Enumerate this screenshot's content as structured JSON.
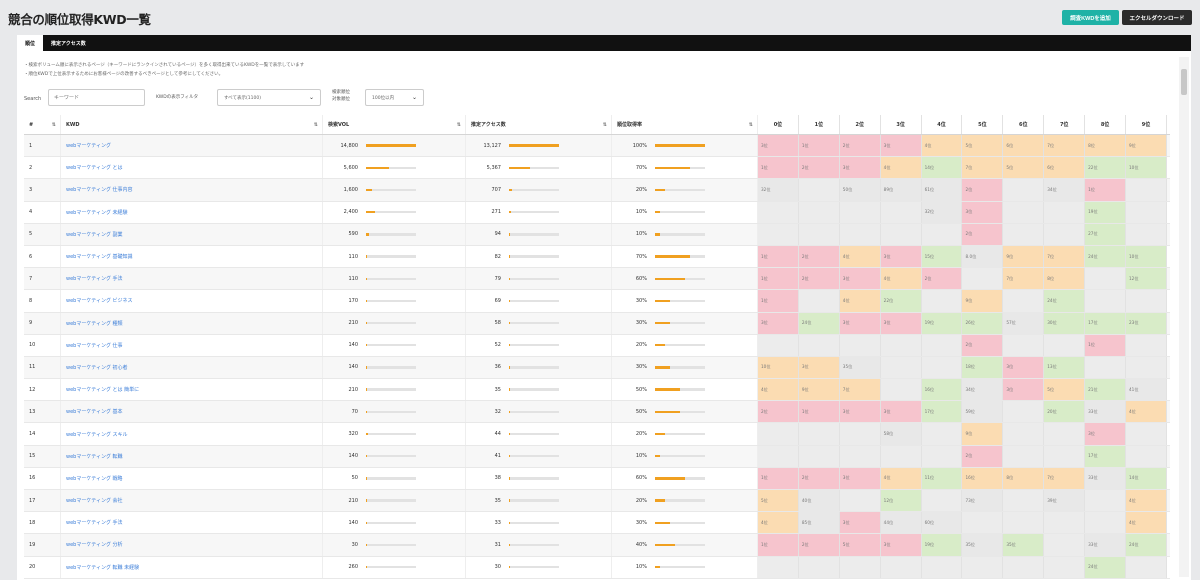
{
  "page": {
    "title": "競合の順位取得KWD一覧"
  },
  "toolbar": {
    "left_button": "調査KWDを追加",
    "right_button": "エクセルダウンロード"
  },
  "tabs": [
    {
      "label": "順位"
    },
    {
      "label": "推定アクセス数"
    }
  ],
  "notes": {
    "line1": "・検索ボリューム順に表示されるページ（キーワードにランクインされているページ）を多く取得出来ているKWDを一覧で表示しています",
    "line2": "・順位KWDで上位表示するためにお客様ページの改善するべきページとして参考にしてください。"
  },
  "filters": {
    "search_label": "Search",
    "search_placeholder": "キーワード",
    "kwd_filter_label": "KWDの表示フィルタ",
    "kwd_filter_value": "すべて表示(1100)",
    "limit_label_1": "検索順位",
    "limit_label_2": "対象順位",
    "limit_value": "100位以内"
  },
  "table": {
    "headers": {
      "num": "#",
      "kw": "KWD",
      "vol": "検索VOL",
      "access": "推定アクセス数",
      "rate": "順位取得率",
      "ranks": [
        "0位",
        "1位",
        "2位",
        "3位",
        "4位",
        "5位",
        "6位",
        "7位",
        "8位",
        "9位"
      ]
    },
    "rows": [
      {
        "n": "1",
        "kw": "webマーケティング",
        "vol": "14,800",
        "vol_pct": 100,
        "acc": "13,127",
        "acc_pct": 100,
        "rate": "100%",
        "rate_pct": 100,
        "ranks": [
          [
            "3位",
            "pink"
          ],
          [
            "1位",
            "pink"
          ],
          [
            "2位",
            "pink"
          ],
          [
            "3位",
            "pink"
          ],
          [
            "4位",
            "orange"
          ],
          [
            "5位",
            "orange"
          ],
          [
            "6位",
            "orange"
          ],
          [
            "7位",
            "orange"
          ],
          [
            "8位",
            "orange"
          ],
          [
            "9位",
            "orange"
          ]
        ]
      },
      {
        "n": "2",
        "kw": "webマーケティング とは",
        "vol": "5,600",
        "vol_pct": 45,
        "acc": "5,367",
        "acc_pct": 42,
        "rate": "70%",
        "rate_pct": 70,
        "ranks": [
          [
            "1位",
            "pink"
          ],
          [
            "2位",
            "pink"
          ],
          [
            "3位",
            "pink"
          ],
          [
            "4位",
            "orange"
          ],
          [
            "14位",
            "green"
          ],
          [
            "7位",
            "orange"
          ],
          [
            "5位",
            "orange"
          ],
          [
            "6位",
            "orange"
          ],
          [
            "22位",
            "green"
          ],
          [
            "10位",
            "green"
          ]
        ]
      },
      {
        "n": "3",
        "kw": "webマーケティング 仕事内容",
        "vol": "1,600",
        "vol_pct": 12,
        "acc": "707",
        "acc_pct": 6,
        "rate": "20%",
        "rate_pct": 20,
        "ranks": [
          [
            "32位",
            "gray"
          ],
          [
            "",
            ""
          ],
          [
            "50位",
            "gray"
          ],
          [
            "89位",
            "gray"
          ],
          [
            "61位",
            "gray"
          ],
          [
            "2位",
            "pink"
          ],
          [
            "",
            ""
          ],
          [
            "34位",
            "gray"
          ],
          [
            "1位",
            "pink"
          ],
          [
            "",
            ""
          ]
        ]
      },
      {
        "n": "4",
        "kw": "webマーケティング 未経験",
        "vol": "2,400",
        "vol_pct": 18,
        "acc": "271",
        "acc_pct": 3,
        "rate": "10%",
        "rate_pct": 10,
        "ranks": [
          [
            "",
            ""
          ],
          [
            "",
            ""
          ],
          [
            "",
            ""
          ],
          [
            "",
            ""
          ],
          [
            "32位",
            "gray"
          ],
          [
            "3位",
            "pink"
          ],
          [
            "",
            ""
          ],
          [
            "",
            ""
          ],
          [
            "19位",
            "green"
          ],
          [
            "",
            ""
          ]
        ]
      },
      {
        "n": "5",
        "kw": "webマーケティング 副業",
        "vol": "590",
        "vol_pct": 5,
        "acc": "94",
        "acc_pct": 1,
        "rate": "10%",
        "rate_pct": 10,
        "ranks": [
          [
            "",
            ""
          ],
          [
            "",
            ""
          ],
          [
            "",
            ""
          ],
          [
            "",
            ""
          ],
          [
            "",
            ""
          ],
          [
            "2位",
            "pink"
          ],
          [
            "",
            ""
          ],
          [
            "",
            ""
          ],
          [
            "27位",
            "green"
          ],
          [
            "",
            ""
          ]
        ]
      },
      {
        "n": "6",
        "kw": "webマーケティング 基礎知識",
        "vol": "110",
        "vol_pct": 1,
        "acc": "82",
        "acc_pct": 1,
        "rate": "70%",
        "rate_pct": 70,
        "ranks": [
          [
            "1位",
            "pink"
          ],
          [
            "2位",
            "pink"
          ],
          [
            "4位",
            "orange"
          ],
          [
            "3位",
            "pink"
          ],
          [
            "15位",
            "green"
          ],
          [
            "8.0位",
            "gray"
          ],
          [
            "9位",
            "orange"
          ],
          [
            "7位",
            "orange"
          ],
          [
            "24位",
            "green"
          ],
          [
            "10位",
            "green"
          ]
        ]
      },
      {
        "n": "7",
        "kw": "webマーケティング 手法",
        "vol": "110",
        "vol_pct": 1,
        "acc": "79",
        "acc_pct": 1,
        "rate": "60%",
        "rate_pct": 60,
        "ranks": [
          [
            "1位",
            "pink"
          ],
          [
            "2位",
            "pink"
          ],
          [
            "3位",
            "pink"
          ],
          [
            "4位",
            "orange"
          ],
          [
            "2位",
            "pink"
          ],
          [
            "",
            ""
          ],
          [
            "7位",
            "orange"
          ],
          [
            "8位",
            "orange"
          ],
          [
            "",
            ""
          ],
          [
            "12位",
            "green"
          ]
        ]
      },
      {
        "n": "8",
        "kw": "webマーケティング ビジネス",
        "vol": "170",
        "vol_pct": 1,
        "acc": "69",
        "acc_pct": 1,
        "rate": "30%",
        "rate_pct": 30,
        "ranks": [
          [
            "1位",
            "pink"
          ],
          [
            "",
            ""
          ],
          [
            "4位",
            "orange"
          ],
          [
            "22位",
            "green"
          ],
          [
            "",
            ""
          ],
          [
            "9位",
            "orange"
          ],
          [
            "",
            ""
          ],
          [
            "24位",
            "green"
          ],
          [
            "",
            ""
          ],
          [
            "",
            ""
          ]
        ]
      },
      {
        "n": "9",
        "kw": "webマーケティング 種類",
        "vol": "210",
        "vol_pct": 2,
        "acc": "58",
        "acc_pct": 1,
        "rate": "30%",
        "rate_pct": 30,
        "ranks": [
          [
            "3位",
            "pink"
          ],
          [
            "24位",
            "green"
          ],
          [
            "3位",
            "pink"
          ],
          [
            "3位",
            "pink"
          ],
          [
            "19位",
            "green"
          ],
          [
            "26位",
            "green"
          ],
          [
            "57位",
            "gray"
          ],
          [
            "30位",
            "green"
          ],
          [
            "17位",
            "green"
          ],
          [
            "23位",
            "green"
          ]
        ]
      },
      {
        "n": "10",
        "kw": "webマーケティング 仕事",
        "vol": "140",
        "vol_pct": 1,
        "acc": "52",
        "acc_pct": 1,
        "rate": "20%",
        "rate_pct": 20,
        "ranks": [
          [
            "",
            ""
          ],
          [
            "",
            ""
          ],
          [
            "",
            ""
          ],
          [
            "",
            ""
          ],
          [
            "",
            ""
          ],
          [
            "2位",
            "pink"
          ],
          [
            "",
            ""
          ],
          [
            "",
            ""
          ],
          [
            "1位",
            "pink"
          ],
          [
            "",
            ""
          ]
        ]
      },
      {
        "n": "11",
        "kw": "webマーケティング 初心者",
        "vol": "140",
        "vol_pct": 1,
        "acc": "36",
        "acc_pct": 1,
        "rate": "30%",
        "rate_pct": 30,
        "ranks": [
          [
            "10位",
            "orange"
          ],
          [
            "3位",
            "orange"
          ],
          [
            "35位",
            "gray"
          ],
          [
            "",
            ""
          ],
          [
            "",
            ""
          ],
          [
            "18位",
            "green"
          ],
          [
            "3位",
            "pink"
          ],
          [
            "13位",
            "green"
          ],
          [
            "",
            ""
          ],
          [
            "",
            ""
          ]
        ]
      },
      {
        "n": "12",
        "kw": "webマーケティング とは 簡単に",
        "vol": "210",
        "vol_pct": 2,
        "acc": "35",
        "acc_pct": 1,
        "rate": "50%",
        "rate_pct": 50,
        "ranks": [
          [
            "4位",
            "orange"
          ],
          [
            "9位",
            "orange"
          ],
          [
            "7位",
            "orange"
          ],
          [
            "",
            ""
          ],
          [
            "16位",
            "green"
          ],
          [
            "34位",
            "gray"
          ],
          [
            "3位",
            "pink"
          ],
          [
            "5位",
            "orange"
          ],
          [
            "21位",
            "green"
          ],
          [
            "41位",
            "gray"
          ]
        ]
      },
      {
        "n": "13",
        "kw": "webマーケティング 基本",
        "vol": "70",
        "vol_pct": 1,
        "acc": "32",
        "acc_pct": 1,
        "rate": "50%",
        "rate_pct": 50,
        "ranks": [
          [
            "2位",
            "pink"
          ],
          [
            "1位",
            "pink"
          ],
          [
            "3位",
            "pink"
          ],
          [
            "3位",
            "pink"
          ],
          [
            "17位",
            "green"
          ],
          [
            "59位",
            "gray"
          ],
          [
            "",
            ""
          ],
          [
            "20位",
            "green"
          ],
          [
            "33位",
            "gray"
          ],
          [
            "4位",
            "orange"
          ]
        ]
      },
      {
        "n": "14",
        "kw": "webマーケティング スキル",
        "vol": "320",
        "vol_pct": 3,
        "acc": "44",
        "acc_pct": 1,
        "rate": "20%",
        "rate_pct": 20,
        "ranks": [
          [
            "",
            ""
          ],
          [
            "",
            ""
          ],
          [
            "",
            ""
          ],
          [
            "58位",
            "gray"
          ],
          [
            "",
            ""
          ],
          [
            "9位",
            "orange"
          ],
          [
            "",
            ""
          ],
          [
            "",
            ""
          ],
          [
            "3位",
            "pink"
          ],
          [
            "",
            ""
          ]
        ]
      },
      {
        "n": "15",
        "kw": "webマーケティング 転職",
        "vol": "140",
        "vol_pct": 1,
        "acc": "41",
        "acc_pct": 1,
        "rate": "10%",
        "rate_pct": 10,
        "ranks": [
          [
            "",
            ""
          ],
          [
            "",
            ""
          ],
          [
            "",
            ""
          ],
          [
            "",
            ""
          ],
          [
            "",
            ""
          ],
          [
            "2位",
            "pink"
          ],
          [
            "",
            ""
          ],
          [
            "",
            ""
          ],
          [
            "17位",
            "green"
          ],
          [
            "",
            ""
          ]
        ]
      },
      {
        "n": "16",
        "kw": "webマーケティング 戦略",
        "vol": "50",
        "vol_pct": 1,
        "acc": "38",
        "acc_pct": 1,
        "rate": "60%",
        "rate_pct": 60,
        "ranks": [
          [
            "1位",
            "pink"
          ],
          [
            "2位",
            "pink"
          ],
          [
            "3位",
            "pink"
          ],
          [
            "4位",
            "orange"
          ],
          [
            "11位",
            "green"
          ],
          [
            "16位",
            "orange"
          ],
          [
            "8位",
            "orange"
          ],
          [
            "7位",
            "orange"
          ],
          [
            "33位",
            "gray"
          ],
          [
            "14位",
            "green"
          ]
        ]
      },
      {
        "n": "17",
        "kw": "webマーケティング 会社",
        "vol": "210",
        "vol_pct": 2,
        "acc": "35",
        "acc_pct": 1,
        "rate": "20%",
        "rate_pct": 20,
        "ranks": [
          [
            "5位",
            "orange"
          ],
          [
            "40位",
            "gray"
          ],
          [
            "",
            ""
          ],
          [
            "12位",
            "green"
          ],
          [
            "",
            ""
          ],
          [
            "73位",
            "gray"
          ],
          [
            "",
            ""
          ],
          [
            "39位",
            "gray"
          ],
          [
            "",
            ""
          ],
          [
            "4位",
            "orange"
          ]
        ]
      },
      {
        "n": "18",
        "kw": "webマーケティング 手法",
        "vol": "140",
        "vol_pct": 1,
        "acc": "33",
        "acc_pct": 1,
        "rate": "30%",
        "rate_pct": 30,
        "ranks": [
          [
            "4位",
            "orange"
          ],
          [
            "85位",
            "gray"
          ],
          [
            "3位",
            "pink"
          ],
          [
            "44位",
            "gray"
          ],
          [
            "60位",
            "gray"
          ],
          [
            "",
            ""
          ],
          [
            "",
            ""
          ],
          [
            "",
            ""
          ],
          [
            "",
            ""
          ],
          [
            "4位",
            "orange"
          ]
        ]
      },
      {
        "n": "19",
        "kw": "webマーケティング 分析",
        "vol": "30",
        "vol_pct": 1,
        "acc": "31",
        "acc_pct": 1,
        "rate": "40%",
        "rate_pct": 40,
        "ranks": [
          [
            "1位",
            "pink"
          ],
          [
            "2位",
            "pink"
          ],
          [
            "5位",
            "pink"
          ],
          [
            "3位",
            "pink"
          ],
          [
            "19位",
            "green"
          ],
          [
            "35位",
            "gray"
          ],
          [
            "35位",
            "green"
          ],
          [
            "",
            ""
          ],
          [
            "33位",
            "gray"
          ],
          [
            "24位",
            "green"
          ]
        ]
      },
      {
        "n": "20",
        "kw": "webマーケティング 転職 未経験",
        "vol": "260",
        "vol_pct": 2,
        "acc": "30",
        "acc_pct": 1,
        "rate": "10%",
        "rate_pct": 10,
        "ranks": [
          [
            "",
            ""
          ],
          [
            "",
            ""
          ],
          [
            "",
            ""
          ],
          [
            "",
            ""
          ],
          [
            "",
            ""
          ],
          [
            "",
            ""
          ],
          [
            "",
            ""
          ],
          [
            "",
            ""
          ],
          [
            "24位",
            "green"
          ],
          [
            "",
            ""
          ]
        ]
      }
    ]
  },
  "colors": {
    "accent_bar": "#f0a020",
    "teal": "#1fb2a6",
    "link": "#3b7dd8",
    "pink": "#f6c4cd",
    "orange": "#fbdcb2",
    "green": "#d8ecc8"
  }
}
